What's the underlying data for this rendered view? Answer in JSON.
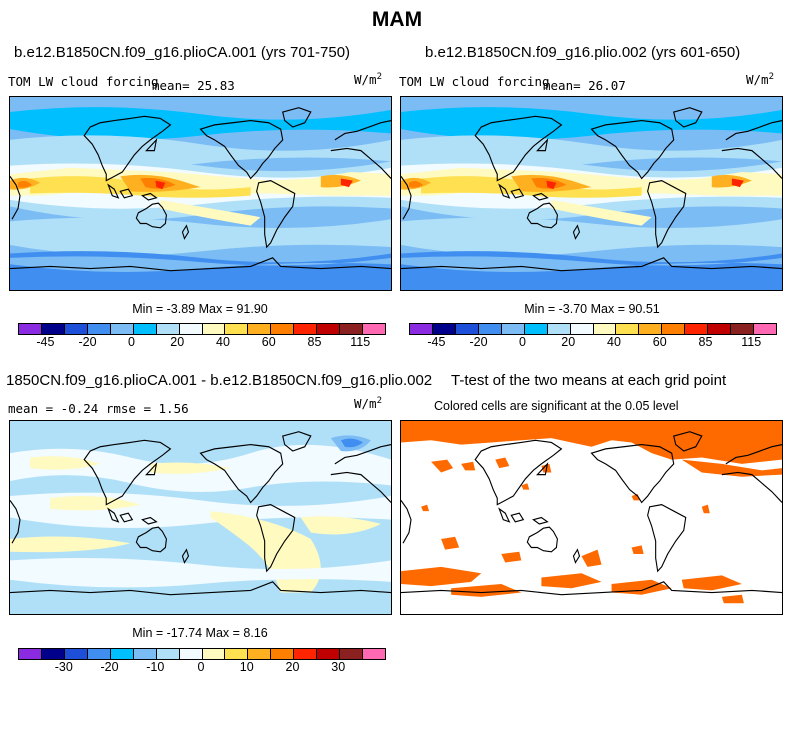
{
  "title": "MAM",
  "panels": [
    {
      "case": "b.e12.B1850CN.f09_g16.plioCA.001 (yrs 701-750)",
      "variable": "TOM LW cloud forcing",
      "mean": "mean=  25.83",
      "units": "W/m",
      "units_sup": "2",
      "stats": "Min =  -3.89 Max =  91.90"
    },
    {
      "case": "b.e12.B1850CN.f09_g16.plio.002 (yrs 601-650)",
      "variable": "TOM LW cloud forcing",
      "mean": "mean=  26.07",
      "units": "W/m",
      "units_sup": "2",
      "stats": "Min =  -3.70 Max =  90.51"
    },
    {
      "case": "1850CN.f09_g16.plioCA.001 - b.e12.B1850CN.f09_g16.plio.002",
      "mean_rmse": "mean =  -0.24    rmse =   1.56",
      "units": "W/m",
      "units_sup": "2",
      "stats": "Min = -17.74 Max =   8.16"
    },
    {
      "case": "T-test of the two means at each grid point",
      "note": "Colored cells are significant at the 0.05 level"
    }
  ],
  "colorbar_main": {
    "colors": [
      "#8a2be2",
      "#00008b",
      "#1e4fd8",
      "#3f8ef0",
      "#7cbcf5",
      "#00bfff",
      "#b0e0f8",
      "#f2fbff",
      "#fffac0",
      "#ffe050",
      "#ffb020",
      "#ff7f00",
      "#ff2400",
      "#c00000",
      "#8b2020",
      "#ff69b4"
    ],
    "labels": [
      "-45",
      "-20",
      "0",
      "20",
      "40",
      "60",
      "85",
      "115"
    ]
  },
  "colorbar_diff": {
    "colors": [
      "#8a2be2",
      "#00008b",
      "#1e4fd8",
      "#3f8ef0",
      "#00bfff",
      "#7cbcf5",
      "#b0e0f8",
      "#f2fbff",
      "#fffac0",
      "#ffe050",
      "#ffb020",
      "#ff7f00",
      "#ff2400",
      "#c00000",
      "#8b2020",
      "#ff69b4"
    ],
    "labels": [
      "-30",
      "-20",
      "-10",
      "0",
      "10",
      "20",
      "30"
    ]
  }
}
